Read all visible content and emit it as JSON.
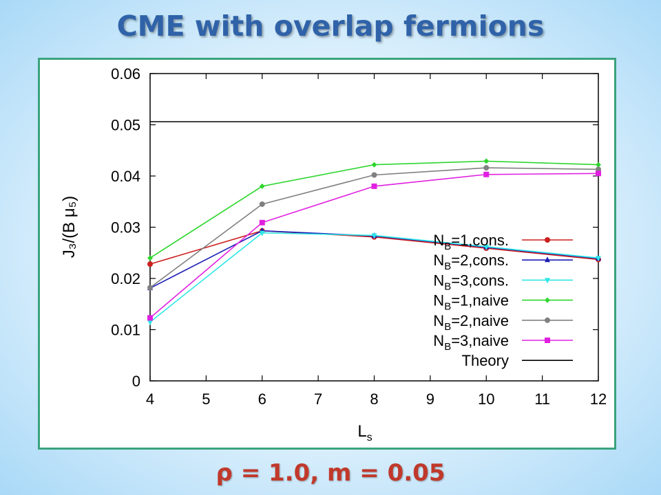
{
  "slide": {
    "title": "CME with overlap fermions",
    "params": "ρ = 1.0, m = 0.05"
  },
  "chart_data": {
    "type": "line",
    "xlabel_main": "L",
    "xlabel_sub": "s",
    "ylabel": "J₃/(B μ₅)",
    "xlim": [
      4,
      12
    ],
    "ylim": [
      0,
      0.06
    ],
    "xticks": [
      "4",
      "5",
      "6",
      "7",
      "8",
      "9",
      "10",
      "11",
      "12"
    ],
    "yticks": [
      "0",
      "0.01",
      "0.02",
      "0.03",
      "0.04",
      "0.05",
      "0.06"
    ],
    "legend_position": "lower-right",
    "grid": false,
    "x": [
      4,
      6,
      8,
      10,
      12
    ],
    "series": [
      {
        "name": "N_B=1,cons.",
        "label_main": "N",
        "label_sub": "B",
        "label_rest": "=1,cons.",
        "color": "#cc1f1f",
        "marker": "circle",
        "values": [
          0.0228,
          0.0293,
          0.0281,
          0.0259,
          0.0237
        ]
      },
      {
        "name": "N_B=2,cons.",
        "label_main": "N",
        "label_sub": "B",
        "label_rest": "=2,cons.",
        "color": "#1a1fb5",
        "marker": "triangle",
        "values": [
          0.0181,
          0.0293,
          0.0283,
          0.0261,
          0.0239
        ]
      },
      {
        "name": "N_B=3,cons.",
        "label_main": "N",
        "label_sub": "B",
        "label_rest": "=3,cons.",
        "color": "#2ee6e6",
        "marker": "triangle-down",
        "values": [
          0.0115,
          0.0289,
          0.0284,
          0.0262,
          0.024
        ]
      },
      {
        "name": "N_B=1,naive",
        "label_main": "N",
        "label_sub": "B",
        "label_rest": "=1,naive",
        "color": "#2ed62e",
        "marker": "diamond",
        "values": [
          0.024,
          0.038,
          0.0422,
          0.0429,
          0.0422
        ]
      },
      {
        "name": "N_B=2,naive",
        "label_main": "N",
        "label_sub": "B",
        "label_rest": "=2,naive",
        "color": "#808080",
        "marker": "circle",
        "values": [
          0.0182,
          0.0345,
          0.0402,
          0.0416,
          0.0413
        ]
      },
      {
        "name": "N_B=3,naive",
        "label_main": "N",
        "label_sub": "B",
        "label_rest": "=3,naive",
        "color": "#e020e0",
        "marker": "square",
        "values": [
          0.0123,
          0.0309,
          0.038,
          0.0403,
          0.0405
        ]
      }
    ],
    "theory": {
      "name": "Theory",
      "color": "#000000",
      "value": 0.0506
    }
  }
}
